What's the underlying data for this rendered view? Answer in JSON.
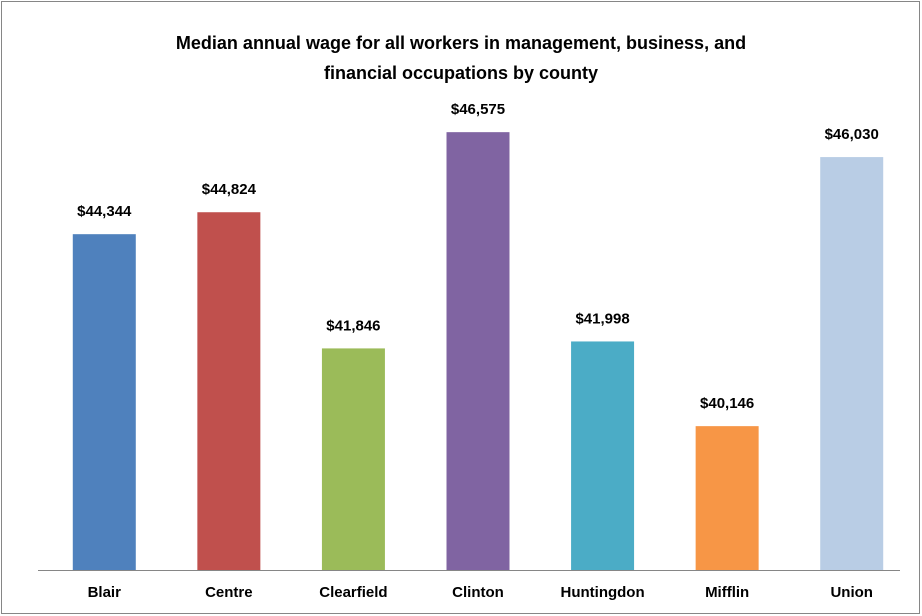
{
  "chart_data": {
    "type": "bar",
    "title": [
      "Median annual wage for all workers in management, business, and",
      "financial occupations by county"
    ],
    "categories": [
      "Blair",
      "Centre",
      "Clearfield",
      "Clinton",
      "Huntingdon",
      "Mifflin",
      "Union"
    ],
    "values": [
      44344,
      44824,
      41846,
      46575,
      41998,
      40146,
      46030
    ],
    "value_labels": [
      "$44,344",
      "$44,824",
      "$41,846",
      "$46,575",
      "$41,998",
      "$40,146",
      "$46,030"
    ],
    "colors": [
      "#4f81bd",
      "#c0504d",
      "#9bbb59",
      "#8064a2",
      "#4bacc6",
      "#f79646",
      "#b9cde5"
    ],
    "ylim": [
      37000,
      48000
    ]
  }
}
